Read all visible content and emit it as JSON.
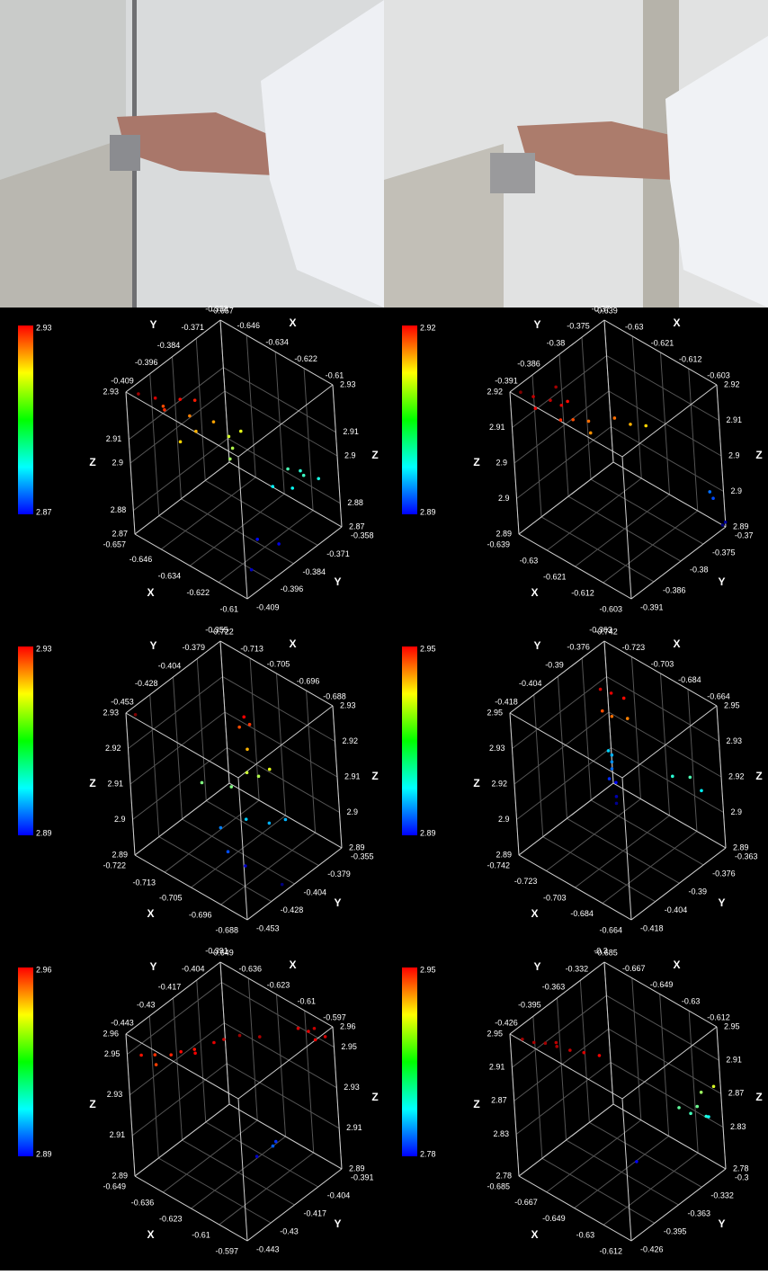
{
  "chart_data": [
    {
      "type": "scatter3d",
      "xlabel": "X",
      "ylabel": "Y",
      "zlabel": "Z",
      "colormap": "jet",
      "colorbar": true,
      "grid": true,
      "xlim": [
        -0.657,
        -0.61
      ],
      "ylim": [
        -0.409,
        -0.358
      ],
      "zlim": [
        2.87,
        2.93
      ],
      "xticks": [
        -0.657,
        -0.646,
        -0.634,
        -0.622,
        -0.61
      ],
      "yticks": [
        -0.409,
        -0.396,
        -0.384,
        -0.371,
        -0.358
      ],
      "zticks": [
        2.87,
        2.88,
        2.9,
        2.91,
        2.93
      ],
      "x": [
        -0.655,
        -0.652,
        -0.65,
        -0.648,
        -0.645,
        -0.653,
        -0.646,
        -0.642,
        -0.64,
        -0.644,
        -0.638,
        -0.635,
        -0.636,
        -0.633,
        -0.62,
        -0.618,
        -0.615,
        -0.616,
        -0.612,
        -0.622,
        -0.62,
        -0.615,
        -0.615
      ],
      "y": [
        -0.405,
        -0.4,
        -0.398,
        -0.392,
        -0.388,
        -0.395,
        -0.39,
        -0.392,
        -0.385,
        -0.398,
        -0.38,
        -0.382,
        -0.376,
        -0.386,
        -0.372,
        -0.368,
        -0.37,
        -0.375,
        -0.366,
        -0.378,
        -0.39,
        -0.385,
        -0.4
      ],
      "z": [
        2.928,
        2.925,
        2.92,
        2.922,
        2.921,
        2.918,
        2.915,
        2.912,
        2.913,
        2.91,
        2.905,
        2.903,
        2.906,
        2.902,
        2.897,
        2.895,
        2.896,
        2.893,
        2.894,
        2.892,
        2.878,
        2.876,
        2.874
      ]
    },
    {
      "type": "scatter3d",
      "xlabel": "X",
      "ylabel": "Y",
      "zlabel": "Z",
      "colormap": "jet",
      "colorbar": true,
      "grid": true,
      "xlim": [
        -0.639,
        -0.603
      ],
      "ylim": [
        -0.391,
        -0.37
      ],
      "zlim": [
        2.89,
        2.92
      ],
      "xticks": [
        -0.639,
        -0.63,
        -0.621,
        -0.612,
        -0.603
      ],
      "yticks": [
        -0.391,
        -0.386,
        -0.38,
        -0.375,
        -0.37
      ],
      "zticks": [
        2.89,
        {
          "value": 2.8975,
          "label": "2.9"
        },
        {
          "value": 2.905,
          "label": "2.9"
        },
        {
          "value": 2.9125,
          "label": "2.91"
        },
        2.92
      ],
      "x": [
        -0.637,
        -0.636,
        -0.634,
        -0.632,
        -0.63,
        -0.633,
        -0.631,
        -0.629,
        -0.628,
        -0.626,
        -0.624,
        -0.622,
        -0.62,
        -0.618,
        -0.606,
        -0.605,
        -0.604,
        -0.603
      ],
      "y": [
        -0.39,
        -0.388,
        -0.389,
        -0.387,
        -0.386,
        -0.385,
        -0.384,
        -0.387,
        -0.385,
        -0.383,
        -0.384,
        -0.38,
        -0.378,
        -0.376,
        -0.371,
        -0.371,
        -0.37,
        -0.37
      ],
      "z": [
        2.92,
        2.918,
        2.917,
        2.918,
        2.917,
        2.919,
        2.916,
        2.915,
        2.914,
        2.913,
        2.912,
        2.913,
        2.911,
        2.91,
        2.897,
        2.896,
        2.89,
        2.891
      ]
    },
    {
      "type": "scatter3d",
      "xlabel": "X",
      "ylabel": "Y",
      "zlabel": "Z",
      "colormap": "jet",
      "colorbar": true,
      "grid": true,
      "xlim": [
        -0.722,
        -0.688
      ],
      "ylim": [
        -0.453,
        -0.355
      ],
      "zlim": [
        2.89,
        2.93
      ],
      "xticks": [
        -0.722,
        -0.713,
        -0.705,
        -0.696,
        -0.688
      ],
      "yticks": [
        -0.453,
        -0.428,
        -0.404,
        -0.379,
        -0.355
      ],
      "zticks": [
        2.89,
        2.9,
        2.91,
        2.92,
        2.93
      ],
      "x": [
        -0.72,
        -0.705,
        -0.704,
        -0.706,
        -0.703,
        -0.702,
        -0.7,
        -0.704,
        -0.698,
        -0.71,
        -0.7,
        -0.696,
        -0.705,
        -0.694,
        -0.7,
        -0.698,
        -0.69
      ],
      "y": [
        -0.45,
        -0.39,
        -0.388,
        -0.392,
        -0.395,
        -0.4,
        -0.395,
        -0.41,
        -0.39,
        -0.42,
        -0.41,
        -0.4,
        -0.42,
        -0.39,
        -0.43,
        -0.42,
        -0.41
      ],
      "z": [
        2.93,
        2.925,
        2.923,
        2.922,
        2.918,
        2.913,
        2.912,
        2.91,
        2.914,
        2.91,
        2.903,
        2.902,
        2.9,
        2.902,
        2.898,
        2.893,
        2.89
      ]
    },
    {
      "type": "scatter3d",
      "xlabel": "X",
      "ylabel": "Y",
      "zlabel": "Z",
      "colormap": "jet",
      "colorbar": true,
      "grid": true,
      "xlim": [
        -0.742,
        -0.664
      ],
      "ylim": [
        -0.418,
        -0.363
      ],
      "zlim": [
        2.89,
        2.95
      ],
      "xticks": [
        -0.742,
        -0.723,
        -0.703,
        -0.684,
        -0.664
      ],
      "yticks": [
        -0.418,
        -0.404,
        -0.39,
        -0.376,
        -0.363
      ],
      "zticks": [
        2.89,
        {
          "value": 2.905,
          "label": "2.9"
        },
        2.92,
        {
          "value": 2.935,
          "label": "2.93"
        },
        2.95
      ],
      "x": [
        -0.735,
        -0.734,
        -0.733,
        -0.732,
        -0.733,
        -0.731,
        -0.73,
        -0.729,
        -0.725,
        -0.72,
        -0.715,
        -0.722,
        -0.718,
        -0.712,
        -0.69,
        -0.68,
        -0.675
      ],
      "y": [
        -0.37,
        -0.369,
        -0.37,
        -0.371,
        -0.372,
        -0.37,
        -0.371,
        -0.372,
        -0.38,
        -0.378,
        -0.375,
        -0.382,
        -0.38,
        -0.376,
        -0.37,
        -0.368,
        -0.366
      ],
      "z": [
        2.91,
        2.908,
        2.906,
        2.904,
        2.9,
        2.898,
        2.893,
        2.891,
        2.945,
        2.944,
        2.942,
        2.938,
        2.936,
        2.935,
        2.915,
        2.917,
        2.912
      ]
    },
    {
      "type": "scatter3d",
      "xlabel": "X",
      "ylabel": "Y",
      "zlabel": "Z",
      "colormap": "jet",
      "colorbar": true,
      "grid": true,
      "xlim": [
        -0.649,
        -0.597
      ],
      "ylim": [
        -0.443,
        -0.391
      ],
      "zlim": [
        2.89,
        2.96
      ],
      "xticks": [
        -0.649,
        -0.636,
        -0.623,
        -0.61,
        -0.597
      ],
      "yticks": [
        -0.443,
        -0.43,
        -0.417,
        -0.404,
        -0.391
      ],
      "zticks": [
        2.89,
        2.91,
        2.93,
        2.95,
        2.96
      ],
      "x": [
        -0.645,
        -0.643,
        -0.64,
        -0.638,
        -0.635,
        -0.633,
        -0.63,
        -0.628,
        -0.625,
        -0.62,
        -0.615,
        -0.61,
        -0.607,
        -0.605,
        -0.603,
        -0.6,
        -0.612,
        -0.615,
        -0.62
      ],
      "y": [
        -0.44,
        -0.435,
        -0.438,
        -0.432,
        -0.43,
        -0.425,
        -0.428,
        -0.42,
        -0.418,
        -0.415,
        -0.41,
        -0.395,
        -0.393,
        -0.392,
        -0.394,
        -0.392,
        -0.41,
        -0.405,
        -0.41
      ],
      "z": [
        2.95,
        2.948,
        2.947,
        2.949,
        2.951,
        2.95,
        2.952,
        2.953,
        2.955,
        2.958,
        2.957,
        2.954,
        2.953,
        2.955,
        2.952,
        2.954,
        2.905,
        2.902,
        2.895
      ]
    },
    {
      "type": "scatter3d",
      "xlabel": "X",
      "ylabel": "Y",
      "zlabel": "Z",
      "colormap": "jet",
      "colorbar": true,
      "grid": true,
      "xlim": [
        -0.685,
        -0.612
      ],
      "ylim": [
        -0.426,
        -0.3
      ],
      "zlim": [
        2.78,
        2.95
      ],
      "xticks": [
        -0.685,
        -0.667,
        -0.649,
        -0.63,
        -0.612
      ],
      "yticks": [
        -0.426,
        -0.395,
        -0.363,
        -0.332,
        -0.3
      ],
      "zticks": [
        2.78,
        2.83,
        2.87,
        2.91,
        2.95
      ],
      "x": [
        -0.68,
        -0.675,
        -0.67,
        -0.668,
        -0.665,
        -0.66,
        -0.655,
        -0.65,
        -0.64,
        -0.625,
        -0.62,
        -0.618,
        -0.615,
        -0.62,
        -0.614,
        -0.616
      ],
      "y": [
        -0.42,
        -0.415,
        -0.41,
        -0.4,
        -0.405,
        -0.398,
        -0.39,
        -0.38,
        -0.36,
        -0.33,
        -0.325,
        -0.32,
        -0.315,
        -0.31,
        -0.305,
        -0.31
      ],
      "z": [
        2.945,
        2.943,
        2.944,
        2.94,
        2.942,
        2.938,
        2.935,
        2.93,
        2.8,
        2.86,
        2.855,
        2.862,
        2.85,
        2.87,
        2.88,
        2.845
      ]
    }
  ]
}
